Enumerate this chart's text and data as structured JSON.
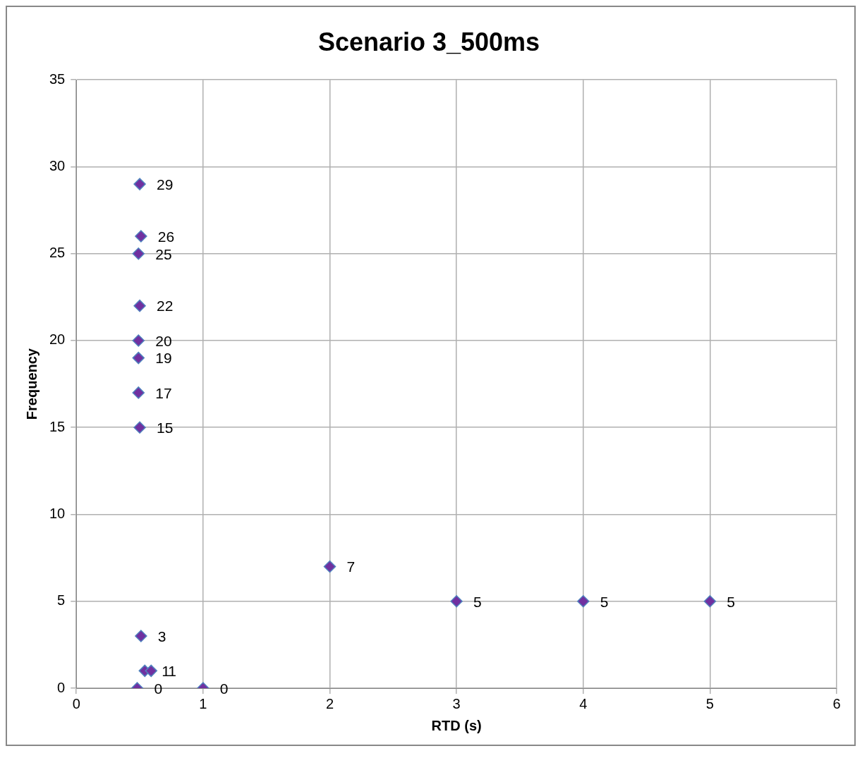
{
  "chart_data": {
    "type": "scatter",
    "title": "Scenario 3_500ms",
    "xlabel": "RTD (s)",
    "ylabel": "Frequency",
    "xlim": [
      0,
      6
    ],
    "xticks": [
      0,
      1,
      2,
      3,
      4,
      5,
      6
    ],
    "ylim": [
      0,
      35
    ],
    "yticks": [
      0,
      5,
      10,
      15,
      20,
      25,
      30,
      35
    ],
    "grid": true,
    "legend": false,
    "marker": "diamond",
    "data_labels": true,
    "series": [
      {
        "color": "#7030a0",
        "x": [
          0.5,
          0.51,
          0.49,
          0.5,
          0.49,
          0.49,
          0.49,
          0.5,
          0.51,
          0.54,
          0.59,
          0.48,
          1,
          2,
          3,
          4,
          5
        ],
        "values": [
          29,
          26,
          25,
          22,
          20,
          19,
          17,
          15,
          3,
          1,
          1,
          0,
          0,
          7,
          5,
          5,
          5
        ]
      }
    ]
  }
}
